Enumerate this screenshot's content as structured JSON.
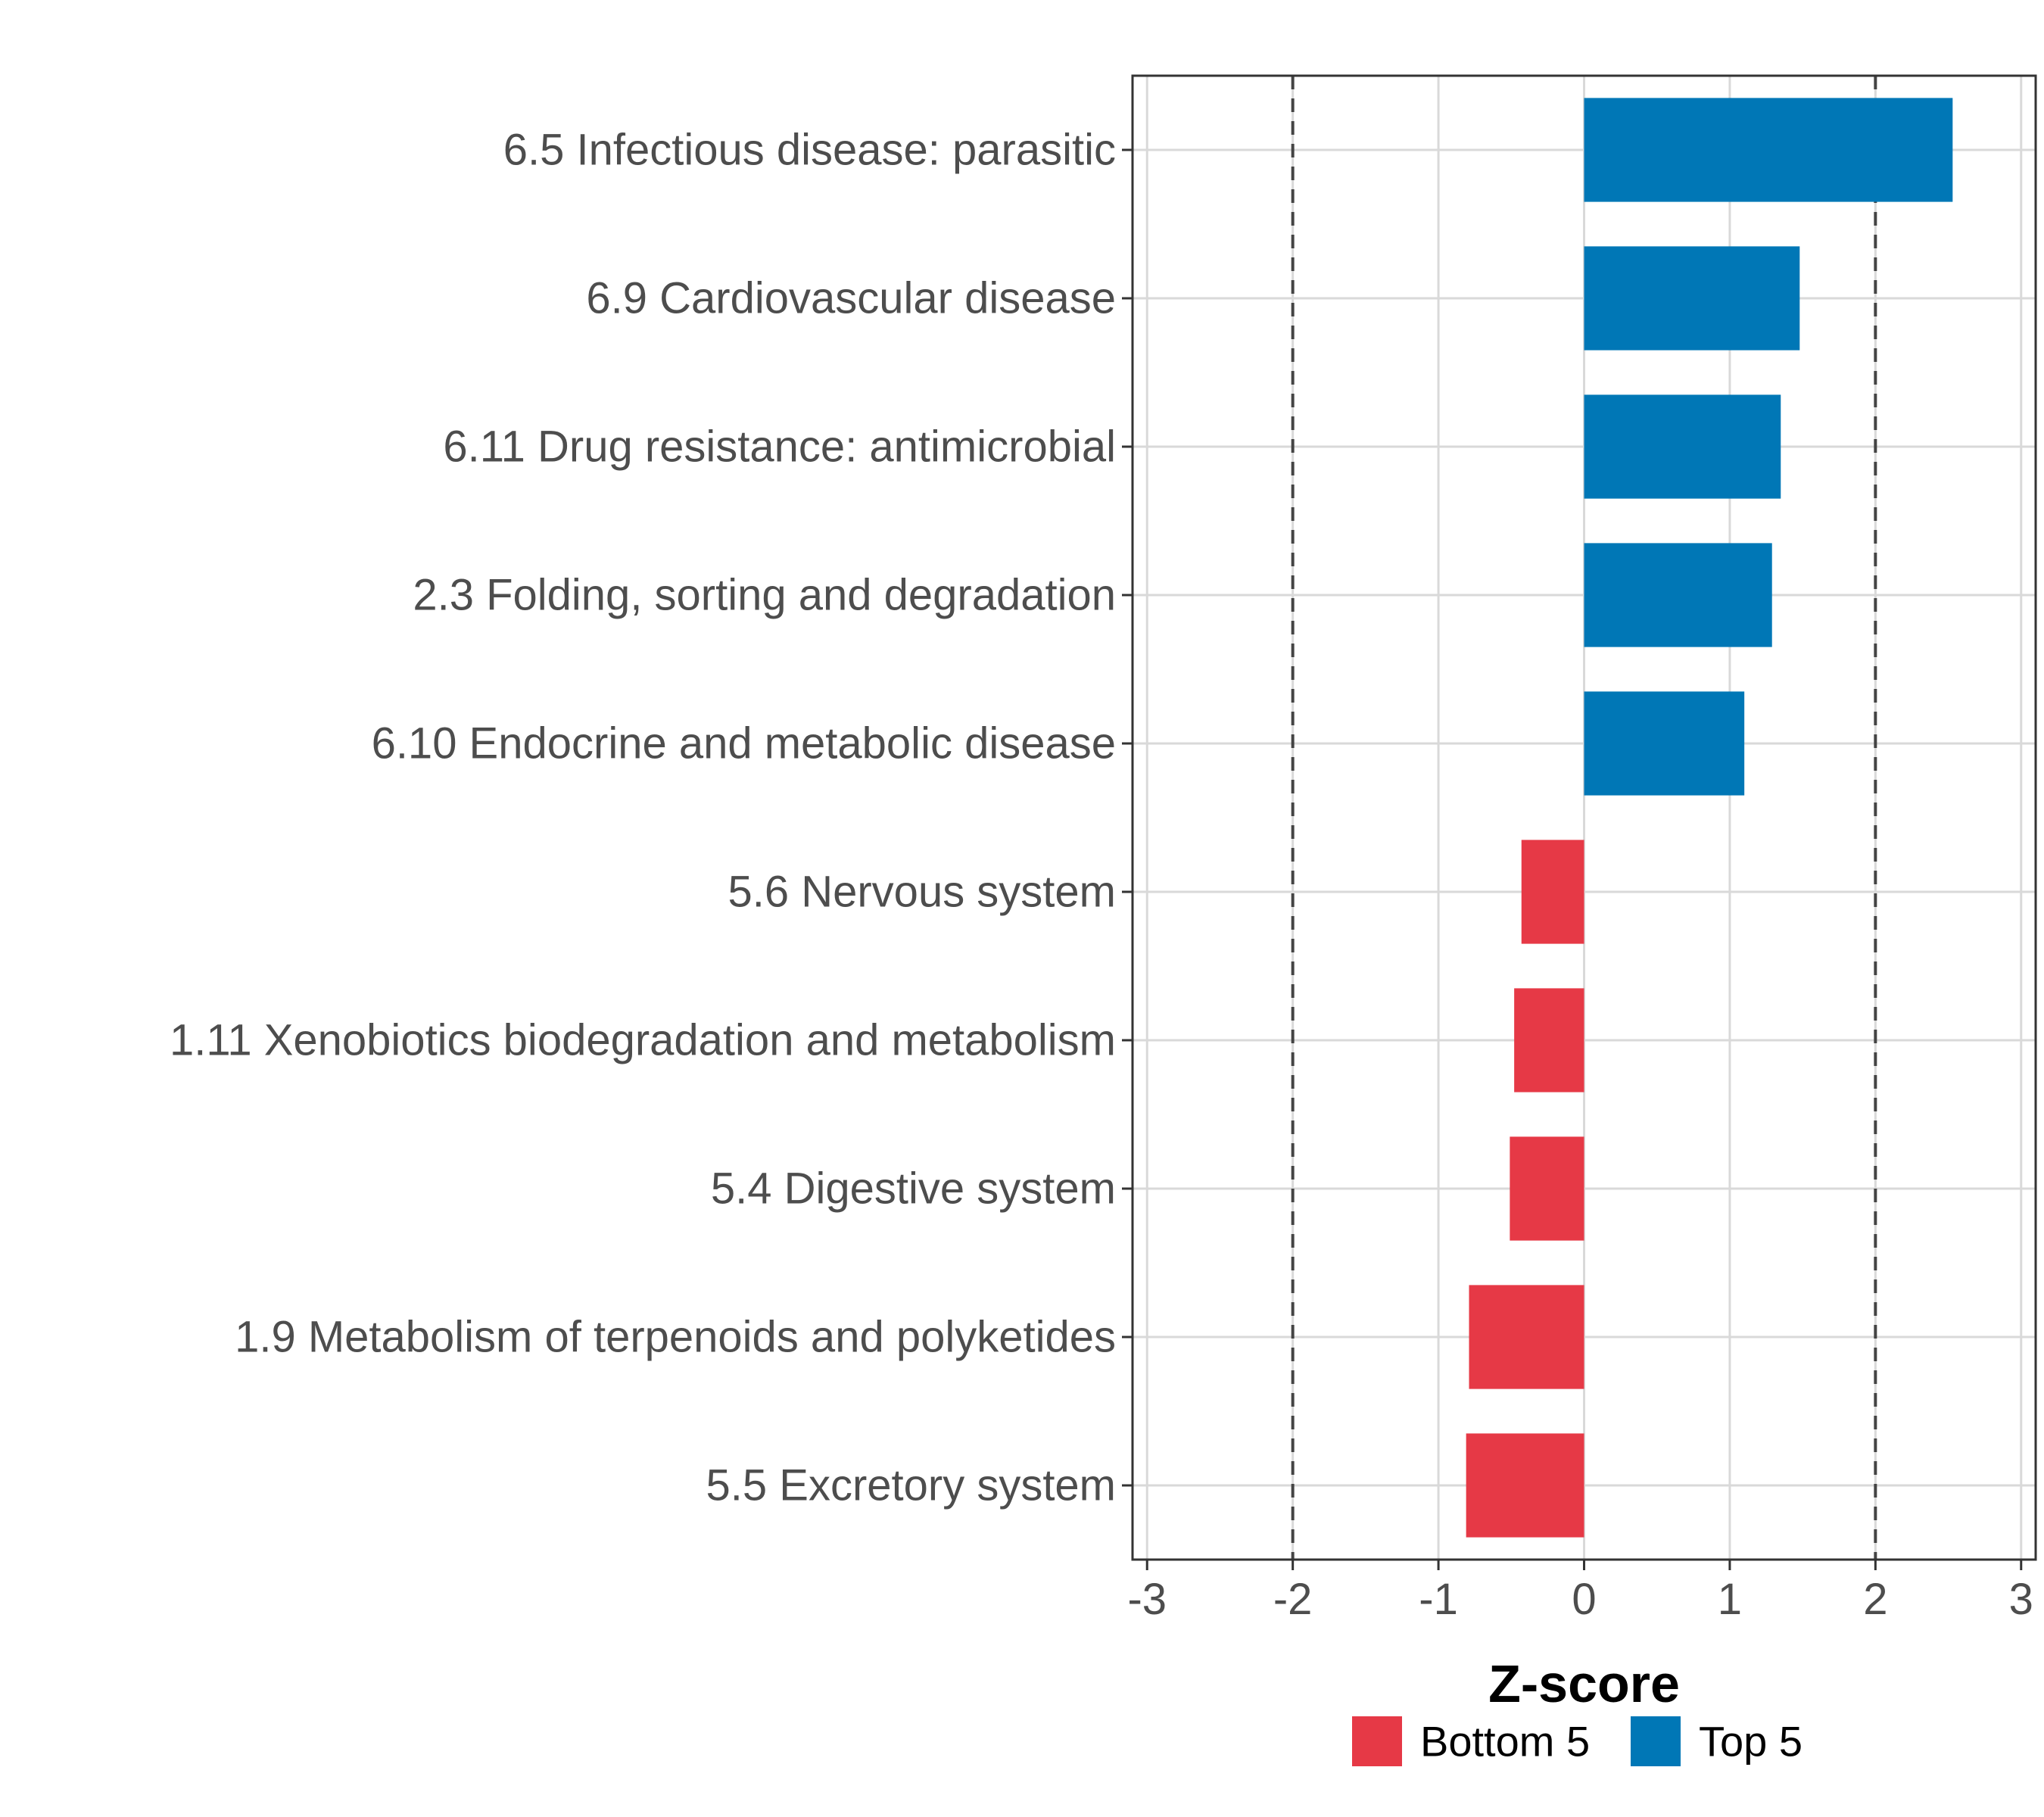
{
  "chart_data": {
    "type": "bar",
    "orientation": "horizontal",
    "categories": [
      "6.5 Infectious disease: parasitic",
      "6.9 Cardiovascular disease",
      "6.11 Drug resistance: antimicrobial",
      "2.3 Folding, sorting and degradation",
      "6.10 Endocrine and metabolic disease",
      "5.6 Nervous system",
      "1.11 Xenobiotics biodegradation and metabolism",
      "5.4 Digestive system",
      "1.9 Metabolism of terpenoids and polyketides",
      "5.5 Excretory system"
    ],
    "values": [
      2.53,
      1.48,
      1.35,
      1.29,
      1.1,
      -0.43,
      -0.48,
      -0.51,
      -0.79,
      -0.81
    ],
    "groups": [
      "Top 5",
      "Top 5",
      "Top 5",
      "Top 5",
      "Top 5",
      "Bottom 5",
      "Bottom 5",
      "Bottom 5",
      "Bottom 5",
      "Bottom 5"
    ],
    "xlabel": "Z-score",
    "ylabel": "",
    "xlim": [
      -3.1,
      3.1
    ],
    "xticks": [
      -3,
      -2,
      -1,
      0,
      1,
      2,
      3
    ],
    "xtick_labels": [
      "-3",
      "-2",
      "-1",
      "0",
      "1",
      "2",
      "3"
    ],
    "reference_lines": [
      -2,
      2
    ],
    "grid": true,
    "legend": {
      "position": "bottom",
      "entries": [
        {
          "label": "Bottom 5",
          "color": "#e63946"
        },
        {
          "label": "Top 5",
          "color": "#0077b6"
        }
      ]
    },
    "colors": {
      "Top 5": "#0077b6",
      "Bottom 5": "#e63946"
    }
  }
}
